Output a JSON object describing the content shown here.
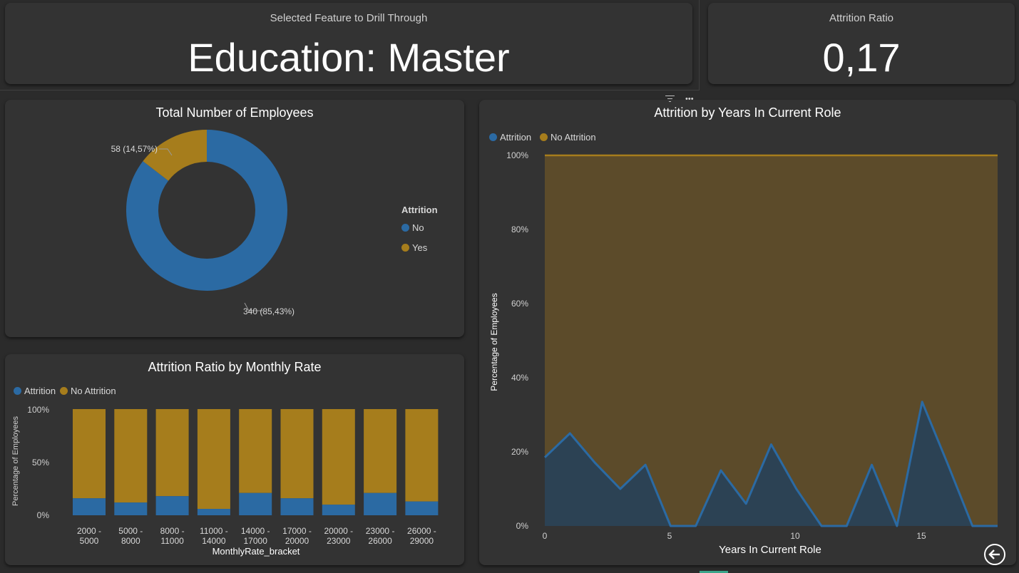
{
  "colors": {
    "attrition": "#2b6aa3",
    "no_attrition": "#a67d1c",
    "card_bg": "#333333",
    "page_bg": "#2b2b2b",
    "area_no_attrition": "#5c4b2a",
    "area_attrition": "#2c4254"
  },
  "drill": {
    "label": "Selected Feature to Drill Through",
    "value": "Education: Master"
  },
  "ratio_kpi": {
    "label": "Attrition Ratio",
    "value": "0,17"
  },
  "visual_header": {
    "filter_icon": "filter-icon",
    "more_icon": "more-options-icon"
  },
  "back_button": {
    "icon": "back-arrow-icon"
  },
  "donut": {
    "title": "Total Number of Employees",
    "legend_title": "Attrition",
    "legend_items": [
      "No",
      "Yes"
    ],
    "label_no": "340 (85,43%)",
    "label_yes": "58 (14,57%)"
  },
  "bars": {
    "title": "Attrition Ratio by Monthly Rate",
    "legend": [
      "Attrition",
      "No Attrition"
    ],
    "ylabel": "Percentage of Employees",
    "xlabel": "MonthlyRate_bracket",
    "yticks": [
      "100%",
      "50%",
      "0%"
    ],
    "xticks": [
      [
        "2000 -",
        "5000"
      ],
      [
        "5000 -",
        "8000"
      ],
      [
        "8000 -",
        "11000"
      ],
      [
        "11000 -",
        "14000"
      ],
      [
        "14000 -",
        "17000"
      ],
      [
        "17000 -",
        "20000"
      ],
      [
        "20000 -",
        "23000"
      ],
      [
        "23000 -",
        "26000"
      ],
      [
        "26000 -",
        "29000"
      ]
    ]
  },
  "area": {
    "title": "Attrition by Years In Current Role",
    "legend": [
      "Attrition",
      "No Attrition"
    ],
    "ylabel": "Percentage of Employees",
    "xlabel": "Years In Current Role",
    "yticks": [
      "100%",
      "80%",
      "60%",
      "40%",
      "20%",
      "0%"
    ],
    "xticks": [
      "0",
      "5",
      "10",
      "15"
    ]
  },
  "chart_data": [
    {
      "type": "pie",
      "title": "Total Number of Employees",
      "legend_title": "Attrition",
      "categories": [
        "No",
        "Yes"
      ],
      "values": [
        340,
        58
      ],
      "percent": [
        85.43,
        14.57
      ]
    },
    {
      "type": "bar",
      "title": "Attrition Ratio by Monthly Rate",
      "categories": [
        "2000 - 5000",
        "5000 - 8000",
        "8000 - 11000",
        "11000 - 14000",
        "14000 - 17000",
        "17000 - 20000",
        "20000 - 23000",
        "23000 - 26000",
        "26000 - 29000"
      ],
      "series": [
        {
          "name": "Attrition",
          "values": [
            0.16,
            0.12,
            0.18,
            0.06,
            0.21,
            0.16,
            0.1,
            0.21,
            0.13
          ]
        },
        {
          "name": "No Attrition",
          "values": [
            0.84,
            0.88,
            0.82,
            0.94,
            0.79,
            0.84,
            0.9,
            0.79,
            0.87
          ]
        }
      ],
      "stacked": true,
      "xlabel": "MonthlyRate_bracket",
      "ylabel": "Percentage of Employees",
      "ylim": [
        0,
        1
      ],
      "legend": "top-left"
    },
    {
      "type": "area",
      "title": "Attrition by Years In Current Role",
      "x": [
        0,
        1,
        2,
        3,
        4,
        5,
        6,
        7,
        8,
        9,
        10,
        11,
        12,
        13,
        14,
        15,
        16,
        17,
        18
      ],
      "series": [
        {
          "name": "Attrition",
          "values": [
            0.185,
            0.25,
            0.17,
            0.1,
            0.165,
            0.0,
            0.0,
            0.15,
            0.06,
            0.22,
            0.1,
            0.0,
            0.0,
            0.165,
            0.0,
            0.335,
            0.17,
            0.0,
            0.0
          ]
        },
        {
          "name": "No Attrition",
          "values": [
            0.815,
            0.75,
            0.83,
            0.9,
            0.835,
            1.0,
            1.0,
            0.85,
            0.94,
            0.78,
            0.9,
            1.0,
            1.0,
            0.835,
            1.0,
            0.665,
            0.83,
            1.0,
            1.0
          ]
        }
      ],
      "stacked_percent": true,
      "xlabel": "Years In Current Role",
      "ylabel": "Percentage of Employees",
      "xlim": [
        0,
        18
      ],
      "ylim": [
        0,
        1
      ],
      "legend": "top-left"
    }
  ]
}
